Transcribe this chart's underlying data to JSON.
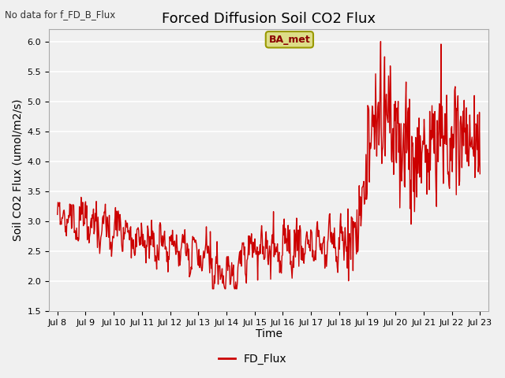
{
  "title": "Forced Diffusion Soil CO2 Flux",
  "top_left_text": "No data for f_FD_B_Flux",
  "ylabel": "Soil CO2 Flux (umol/m2/s)",
  "xlabel": "Time",
  "legend_label": "FD_Flux",
  "legend_color": "#cc0000",
  "line_color": "#cc0000",
  "background_color": "#f0f0f0",
  "plot_bg_color": "#f0f0f0",
  "ylim": [
    1.5,
    6.2
  ],
  "yticks": [
    1.5,
    2.0,
    2.5,
    3.0,
    3.5,
    4.0,
    4.5,
    5.0,
    5.5,
    6.0
  ],
  "x_tick_labels": [
    "Jul 8",
    "Jul 9",
    "Jul 10",
    "Jul 11",
    "Jul 12",
    "Jul 13",
    "Jul 14",
    "Jul 15",
    "Jul 16",
    "Jul 17",
    "Jul 18",
    "Jul 19",
    "Jul 20",
    "Jul 21",
    "Jul 22",
    "Jul 23"
  ],
  "ba_met_box_color": "#dddd88",
  "ba_met_text_color": "#8b0000",
  "title_fontsize": 13,
  "label_fontsize": 10,
  "tick_fontsize": 8,
  "line_width": 1.0,
  "grid_color": "#ffffff",
  "grid_linewidth": 1.2
}
